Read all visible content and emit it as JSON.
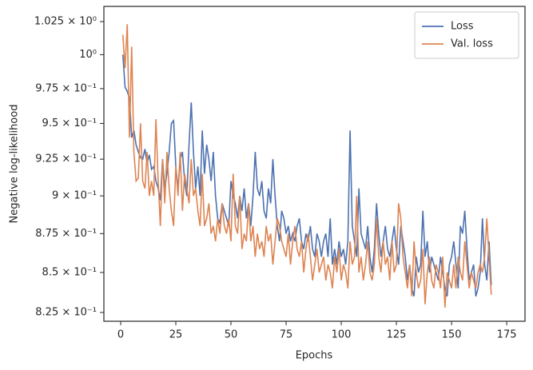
{
  "chart_data": {
    "type": "line",
    "xlabel": "Epochs",
    "ylabel": "Negative log-likelihood",
    "x": [
      1,
      2,
      3,
      4,
      5,
      6,
      7,
      8,
      9,
      10,
      11,
      12,
      13,
      14,
      15,
      16,
      17,
      18,
      19,
      20,
      21,
      22,
      23,
      24,
      25,
      26,
      27,
      28,
      29,
      30,
      31,
      32,
      33,
      34,
      35,
      36,
      37,
      38,
      39,
      40,
      41,
      42,
      43,
      44,
      45,
      46,
      47,
      48,
      49,
      50,
      51,
      52,
      53,
      54,
      55,
      56,
      57,
      58,
      59,
      60,
      61,
      62,
      63,
      64,
      65,
      66,
      67,
      68,
      69,
      70,
      71,
      72,
      73,
      74,
      75,
      76,
      77,
      78,
      79,
      80,
      81,
      82,
      83,
      84,
      85,
      86,
      87,
      88,
      89,
      90,
      91,
      92,
      93,
      94,
      95,
      96,
      97,
      98,
      99,
      100,
      101,
      102,
      103,
      104,
      105,
      106,
      107,
      108,
      109,
      110,
      111,
      112,
      113,
      114,
      115,
      116,
      117,
      118,
      119,
      120,
      121,
      122,
      123,
      124,
      125,
      126,
      127,
      128,
      129,
      130,
      131,
      132,
      133,
      134,
      135,
      136,
      137,
      138,
      139,
      140,
      141,
      142,
      143,
      144,
      145,
      146,
      147,
      148,
      149,
      150,
      151,
      152,
      153,
      154,
      155,
      156,
      157,
      158,
      159,
      160,
      161,
      162,
      163,
      164,
      165,
      166,
      167,
      168
    ],
    "series": [
      {
        "name": "Loss",
        "color": "#4c72b0",
        "values": [
          1.0,
          0.976,
          0.973,
          0.968,
          0.94,
          0.945,
          0.935,
          0.93,
          0.926,
          0.925,
          0.932,
          0.922,
          0.928,
          0.918,
          0.92,
          0.91,
          0.905,
          0.897,
          0.925,
          0.905,
          0.915,
          0.93,
          0.95,
          0.952,
          0.92,
          0.905,
          0.925,
          0.93,
          0.91,
          0.9,
          0.935,
          0.965,
          0.93,
          0.905,
          0.92,
          0.9,
          0.945,
          0.915,
          0.935,
          0.925,
          0.91,
          0.93,
          0.9,
          0.885,
          0.882,
          0.895,
          0.89,
          0.885,
          0.88,
          0.91,
          0.9,
          0.895,
          0.885,
          0.9,
          0.89,
          0.905,
          0.885,
          0.895,
          0.88,
          0.9,
          0.93,
          0.905,
          0.9,
          0.91,
          0.89,
          0.885,
          0.905,
          0.895,
          0.925,
          0.9,
          0.88,
          0.87,
          0.89,
          0.885,
          0.875,
          0.88,
          0.87,
          0.875,
          0.87,
          0.88,
          0.885,
          0.87,
          0.865,
          0.875,
          0.87,
          0.88,
          0.865,
          0.86,
          0.875,
          0.87,
          0.86,
          0.87,
          0.875,
          0.86,
          0.885,
          0.855,
          0.865,
          0.855,
          0.87,
          0.86,
          0.865,
          0.855,
          0.87,
          0.945,
          0.88,
          0.87,
          0.86,
          0.905,
          0.875,
          0.87,
          0.865,
          0.88,
          0.86,
          0.85,
          0.865,
          0.895,
          0.875,
          0.86,
          0.87,
          0.88,
          0.865,
          0.86,
          0.87,
          0.88,
          0.865,
          0.855,
          0.88,
          0.87,
          0.86,
          0.845,
          0.855,
          0.84,
          0.835,
          0.86,
          0.85,
          0.855,
          0.89,
          0.86,
          0.87,
          0.85,
          0.86,
          0.855,
          0.85,
          0.845,
          0.86,
          0.85,
          0.84,
          0.835,
          0.855,
          0.86,
          0.87,
          0.855,
          0.84,
          0.88,
          0.875,
          0.89,
          0.865,
          0.845,
          0.85,
          0.855,
          0.835,
          0.84,
          0.85,
          0.885,
          0.855,
          0.845,
          0.87,
          0.842
        ]
      },
      {
        "name": "Val. loss",
        "color": "#dd8452",
        "values": [
          1.015,
          0.99,
          1.023,
          0.94,
          1.006,
          0.93,
          0.91,
          0.912,
          0.95,
          0.91,
          0.905,
          0.93,
          0.9,
          0.91,
          0.9,
          0.953,
          0.91,
          0.88,
          0.925,
          0.895,
          0.93,
          0.905,
          0.89,
          0.88,
          0.92,
          0.9,
          0.93,
          0.89,
          0.915,
          0.905,
          0.895,
          0.925,
          0.9,
          0.905,
          0.89,
          0.88,
          0.915,
          0.88,
          0.885,
          0.895,
          0.875,
          0.88,
          0.87,
          0.885,
          0.875,
          0.895,
          0.88,
          0.875,
          0.885,
          0.87,
          0.915,
          0.88,
          0.875,
          0.9,
          0.865,
          0.875,
          0.87,
          0.895,
          0.87,
          0.88,
          0.86,
          0.875,
          0.865,
          0.87,
          0.86,
          0.88,
          0.87,
          0.875,
          0.855,
          0.87,
          0.885,
          0.88,
          0.87,
          0.865,
          0.86,
          0.875,
          0.855,
          0.87,
          0.88,
          0.865,
          0.86,
          0.87,
          0.85,
          0.865,
          0.875,
          0.86,
          0.845,
          0.855,
          0.865,
          0.85,
          0.855,
          0.86,
          0.845,
          0.855,
          0.85,
          0.84,
          0.86,
          0.85,
          0.865,
          0.845,
          0.855,
          0.85,
          0.84,
          0.87,
          0.855,
          0.86,
          0.9,
          0.85,
          0.86,
          0.845,
          0.855,
          0.87,
          0.85,
          0.845,
          0.855,
          0.885,
          0.86,
          0.85,
          0.87,
          0.855,
          0.86,
          0.845,
          0.87,
          0.85,
          0.855,
          0.895,
          0.885,
          0.86,
          0.85,
          0.84,
          0.855,
          0.835,
          0.87,
          0.85,
          0.84,
          0.845,
          0.865,
          0.83,
          0.85,
          0.86,
          0.845,
          0.84,
          0.855,
          0.85,
          0.84,
          0.86,
          0.828,
          0.85,
          0.845,
          0.84,
          0.855,
          0.84,
          0.86,
          0.85,
          0.845,
          0.87,
          0.855,
          0.84,
          0.85,
          0.845,
          0.84,
          0.85,
          0.855,
          0.85,
          0.86,
          0.885,
          0.86,
          0.836
        ]
      }
    ],
    "xlim": [
      -7.6,
      183.3
    ],
    "xticks": [
      0,
      25,
      50,
      75,
      100,
      125,
      150,
      175
    ],
    "ylim": [
      0.8196,
      1.0367
    ],
    "log_y": true,
    "yticks": [
      {
        "value": 0.825,
        "label": "8.25 × 10⁻¹"
      },
      {
        "value": 0.85,
        "label": "8.5 × 10⁻¹"
      },
      {
        "value": 0.875,
        "label": "8.75 × 10⁻¹"
      },
      {
        "value": 0.9,
        "label": "9 × 10⁻¹"
      },
      {
        "value": 0.925,
        "label": "9.25 × 10⁻¹"
      },
      {
        "value": 0.95,
        "label": "9.5 × 10⁻¹"
      },
      {
        "value": 0.975,
        "label": "9.75 × 10⁻¹"
      },
      {
        "value": 1.0,
        "label": "10⁰"
      },
      {
        "value": 1.025,
        "label": "1.025 × 10⁰"
      }
    ],
    "grid": false,
    "legend": "upper right"
  }
}
